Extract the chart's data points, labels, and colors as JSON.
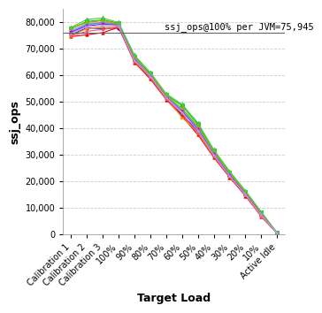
{
  "x_labels": [
    "Calibration 1",
    "Calibration 2",
    "Calibration 3",
    "100%",
    "90%",
    "80%",
    "70%",
    "60%",
    "50%",
    "40%",
    "30%",
    "20%",
    "10%",
    "Active Idle"
  ],
  "reference_line": 75945,
  "reference_label": "ssj_ops@100% per JVM=75,945",
  "ylabel": "ssj_ops",
  "xlabel": "Target Load",
  "ylim": [
    0,
    85000
  ],
  "yticks": [
    0,
    10000,
    20000,
    30000,
    40000,
    50000,
    60000,
    70000,
    80000
  ],
  "series": [
    {
      "color": "#0000EE",
      "marker": "o",
      "values": [
        75200,
        77800,
        77500,
        77800,
        65500,
        59000,
        51200,
        45000,
        39000,
        29500,
        22000,
        15000,
        7200,
        500
      ]
    },
    {
      "color": "#EE0000",
      "marker": "^",
      "values": [
        74500,
        75200,
        76000,
        78000,
        64800,
        58500,
        50800,
        44500,
        37500,
        29000,
        21500,
        14500,
        6800,
        400
      ]
    },
    {
      "color": "#00BB00",
      "marker": "s",
      "values": [
        77500,
        80200,
        80800,
        79500,
        67000,
        60500,
        52500,
        48500,
        41500,
        31500,
        23500,
        16000,
        8200,
        600
      ]
    },
    {
      "color": "#FF88BB",
      "marker": "D",
      "values": [
        77000,
        79500,
        80000,
        79200,
        66500,
        60000,
        52000,
        47000,
        40500,
        31000,
        23000,
        15700,
        7900,
        700
      ]
    },
    {
      "color": "#8866FF",
      "marker": "v",
      "values": [
        76000,
        79000,
        79800,
        79000,
        66000,
        59800,
        51800,
        46500,
        40000,
        30500,
        22500,
        15500,
        7600,
        550
      ]
    },
    {
      "color": "#00CCCC",
      "marker": "<",
      "values": [
        76500,
        79200,
        79500,
        79100,
        66200,
        59900,
        52000,
        47200,
        40200,
        30600,
        22700,
        15600,
        7700,
        560
      ]
    },
    {
      "color": "#FF8800",
      "marker": ">",
      "values": [
        75000,
        77500,
        78200,
        78500,
        65200,
        59200,
        51500,
        44000,
        38500,
        29800,
        22200,
        15200,
        7000,
        450
      ]
    },
    {
      "color": "#AAAA00",
      "marker": "p",
      "values": [
        77800,
        79800,
        80500,
        79300,
        66800,
        60200,
        52300,
        47500,
        40800,
        31200,
        23200,
        16100,
        8000,
        620
      ]
    },
    {
      "color": "#CC00CC",
      "marker": "h",
      "values": [
        76200,
        78500,
        79200,
        78800,
        65800,
        59500,
        51700,
        46200,
        39500,
        30200,
        22300,
        15300,
        7500,
        530
      ]
    },
    {
      "color": "#FF5555",
      "marker": "*",
      "values": [
        74800,
        76500,
        77200,
        78200,
        65000,
        59000,
        51000,
        45500,
        38000,
        29200,
        21800,
        14800,
        6600,
        380
      ]
    },
    {
      "color": "#44CC44",
      "marker": "d",
      "values": [
        78000,
        81000,
        81500,
        79800,
        67500,
        61000,
        53000,
        49000,
        42000,
        32000,
        23800,
        16500,
        8500,
        650
      ]
    },
    {
      "color": "#AAAAFF",
      "marker": "x",
      "values": [
        75800,
        78200,
        78800,
        78600,
        65600,
        59600,
        51600,
        46000,
        39200,
        30000,
        22000,
        15100,
        7300,
        500
      ]
    }
  ],
  "background_color": "#FFFFFF",
  "grid_color": "#CCCCCC",
  "ref_label_fontsize": 7.5,
  "axis_label_fontsize": 9,
  "tick_fontsize": 7
}
